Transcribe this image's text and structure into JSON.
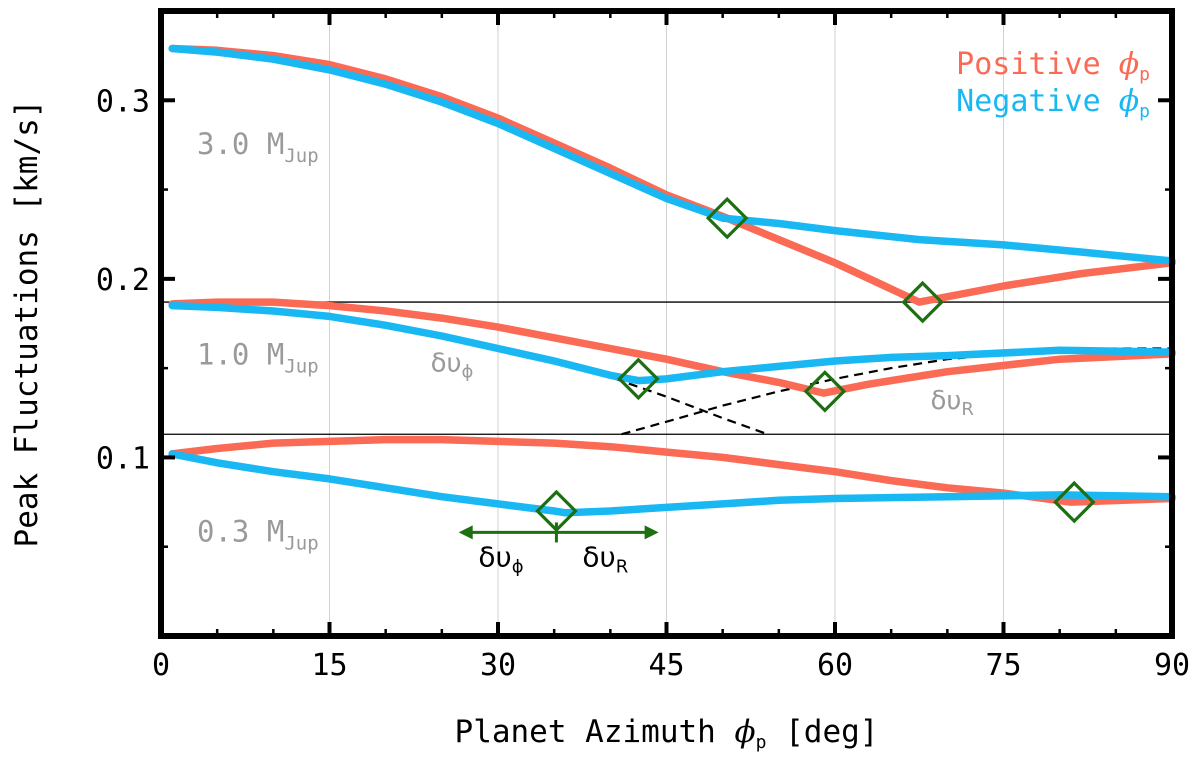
{
  "chart_data": {
    "type": "line",
    "xlabel": "Planet Azimuth φp [deg]",
    "xlabel_main": "Planet Azimuth ",
    "xlabel_phi": "ϕ",
    "xlabel_sub": "p",
    "xlabel_unit": " [deg]",
    "ylabel": "Peak Fluctuations [km/s]",
    "xlim": [
      0,
      90
    ],
    "ylim": [
      0.0,
      0.35
    ],
    "xticks": [
      0,
      15,
      30,
      45,
      60,
      75,
      90
    ],
    "xtick_labels": [
      "0",
      "15",
      "30",
      "45",
      "60",
      "75",
      "90"
    ],
    "yticks": [
      0.1,
      0.2,
      0.3
    ],
    "ytick_labels": [
      "0.1",
      "0.2",
      "0.3"
    ],
    "grid": "vertical",
    "legend": {
      "position": "top-right",
      "entries": [
        {
          "label": "Positive ",
          "symbol": "ϕ",
          "sub": "p",
          "color": "#fa6a55"
        },
        {
          "label": "Negative ",
          "symbol": "ϕ",
          "sub": "p",
          "color": "#19b8f3"
        }
      ]
    },
    "separators_y": [
      0.187,
      0.113
    ],
    "mass_labels": [
      {
        "text": "3.0 M",
        "sub": "Jup",
        "y": 0.27
      },
      {
        "text": "1.0 M",
        "sub": "Jup",
        "y": 0.152
      },
      {
        "text": "0.3 M",
        "sub": "Jup",
        "y": 0.053
      }
    ],
    "series": [
      {
        "name": "3.0 MJup positive",
        "color": "#fa6a55",
        "x": [
          1,
          5,
          10,
          15,
          20,
          25,
          30,
          35,
          40,
          45,
          50,
          55,
          60,
          67.5,
          75,
          82,
          90
        ],
        "y": [
          0.329,
          0.328,
          0.325,
          0.32,
          0.312,
          0.302,
          0.29,
          0.276,
          0.262,
          0.247,
          0.235,
          0.222,
          0.209,
          0.187,
          0.196,
          0.203,
          0.209
        ]
      },
      {
        "name": "3.0 MJup negative",
        "color": "#19b8f3",
        "x": [
          1,
          5,
          10,
          15,
          20,
          25,
          30,
          35,
          40,
          45,
          50,
          55,
          60,
          67.5,
          75,
          82,
          90
        ],
        "y": [
          0.329,
          0.327,
          0.323,
          0.317,
          0.309,
          0.299,
          0.287,
          0.273,
          0.259,
          0.245,
          0.234,
          0.231,
          0.227,
          0.222,
          0.219,
          0.215,
          0.21
        ]
      },
      {
        "name": "1.0 MJup positive",
        "color": "#fa6a55",
        "x": [
          1,
          5,
          10,
          15,
          20,
          25,
          30,
          35,
          40,
          45,
          50,
          55,
          59,
          63,
          70,
          80,
          90
        ],
        "y": [
          0.186,
          0.187,
          0.187,
          0.185,
          0.182,
          0.178,
          0.173,
          0.167,
          0.161,
          0.155,
          0.148,
          0.142,
          0.136,
          0.141,
          0.148,
          0.155,
          0.158
        ]
      },
      {
        "name": "1.0 MJup negative",
        "color": "#19b8f3",
        "x": [
          1,
          5,
          10,
          15,
          20,
          25,
          30,
          35,
          40,
          42.5,
          45,
          50,
          55,
          60,
          65,
          70,
          80,
          90
        ],
        "y": [
          0.185,
          0.184,
          0.182,
          0.179,
          0.174,
          0.168,
          0.161,
          0.154,
          0.146,
          0.143,
          0.144,
          0.148,
          0.151,
          0.154,
          0.156,
          0.157,
          0.16,
          0.159
        ]
      },
      {
        "name": "0.3 MJup positive",
        "color": "#fa6a55",
        "x": [
          1,
          5,
          10,
          15,
          20,
          25,
          30,
          35,
          40,
          45,
          50,
          55,
          60,
          65,
          70,
          75,
          81,
          90
        ],
        "y": [
          0.102,
          0.105,
          0.108,
          0.109,
          0.11,
          0.11,
          0.109,
          0.108,
          0.106,
          0.103,
          0.1,
          0.096,
          0.092,
          0.087,
          0.083,
          0.08,
          0.075,
          0.077
        ]
      },
      {
        "name": "0.3 MJup negative",
        "color": "#19b8f3",
        "x": [
          1,
          5,
          10,
          15,
          20,
          25,
          30,
          35,
          36,
          40,
          45,
          50,
          55,
          60,
          70,
          80,
          90
        ],
        "y": [
          0.102,
          0.097,
          0.092,
          0.088,
          0.083,
          0.078,
          0.074,
          0.07,
          0.069,
          0.07,
          0.072,
          0.074,
          0.076,
          0.077,
          0.078,
          0.079,
          0.078
        ]
      },
      {
        "name": "delta v phi (1.0 MJup)",
        "color": "#000000",
        "dashed": true,
        "x": [
          1,
          10,
          20,
          30,
          35,
          40,
          45,
          50,
          54
        ],
        "y": [
          0.185,
          0.182,
          0.175,
          0.162,
          0.154,
          0.145,
          0.134,
          0.122,
          0.113
        ]
      },
      {
        "name": "delta v R (1.0 MJup)",
        "color": "#000000",
        "dashed": true,
        "x": [
          41,
          45,
          50,
          55,
          60,
          65,
          70,
          75,
          80,
          85,
          90
        ],
        "y": [
          0.113,
          0.12,
          0.129,
          0.137,
          0.144,
          0.15,
          0.155,
          0.158,
          0.16,
          0.161,
          0.161
        ]
      }
    ],
    "markers": [
      {
        "x": 50.4,
        "y": 0.234
      },
      {
        "x": 67.8,
        "y": 0.187
      },
      {
        "x": 42.5,
        "y": 0.144
      },
      {
        "x": 59.1,
        "y": 0.137
      },
      {
        "x": 35.2,
        "y": 0.07
      },
      {
        "x": 81.3,
        "y": 0.075
      }
    ],
    "annotations": [
      {
        "text": "δυ",
        "sub": "ϕ",
        "x": 24,
        "y": 0.148,
        "style": "grey"
      },
      {
        "text": "δυ",
        "sub": "R",
        "x": 68.5,
        "y": 0.127,
        "style": "grey"
      }
    ],
    "arrow": {
      "x_center": 35.2,
      "x_left": 26.5,
      "x_right": 44.3,
      "y": 0.058,
      "left_label": "δυ",
      "left_sub": "ϕ",
      "right_label": "δυ",
      "right_sub": "R",
      "label_y": 0.039,
      "color": "#1e6e12"
    }
  }
}
